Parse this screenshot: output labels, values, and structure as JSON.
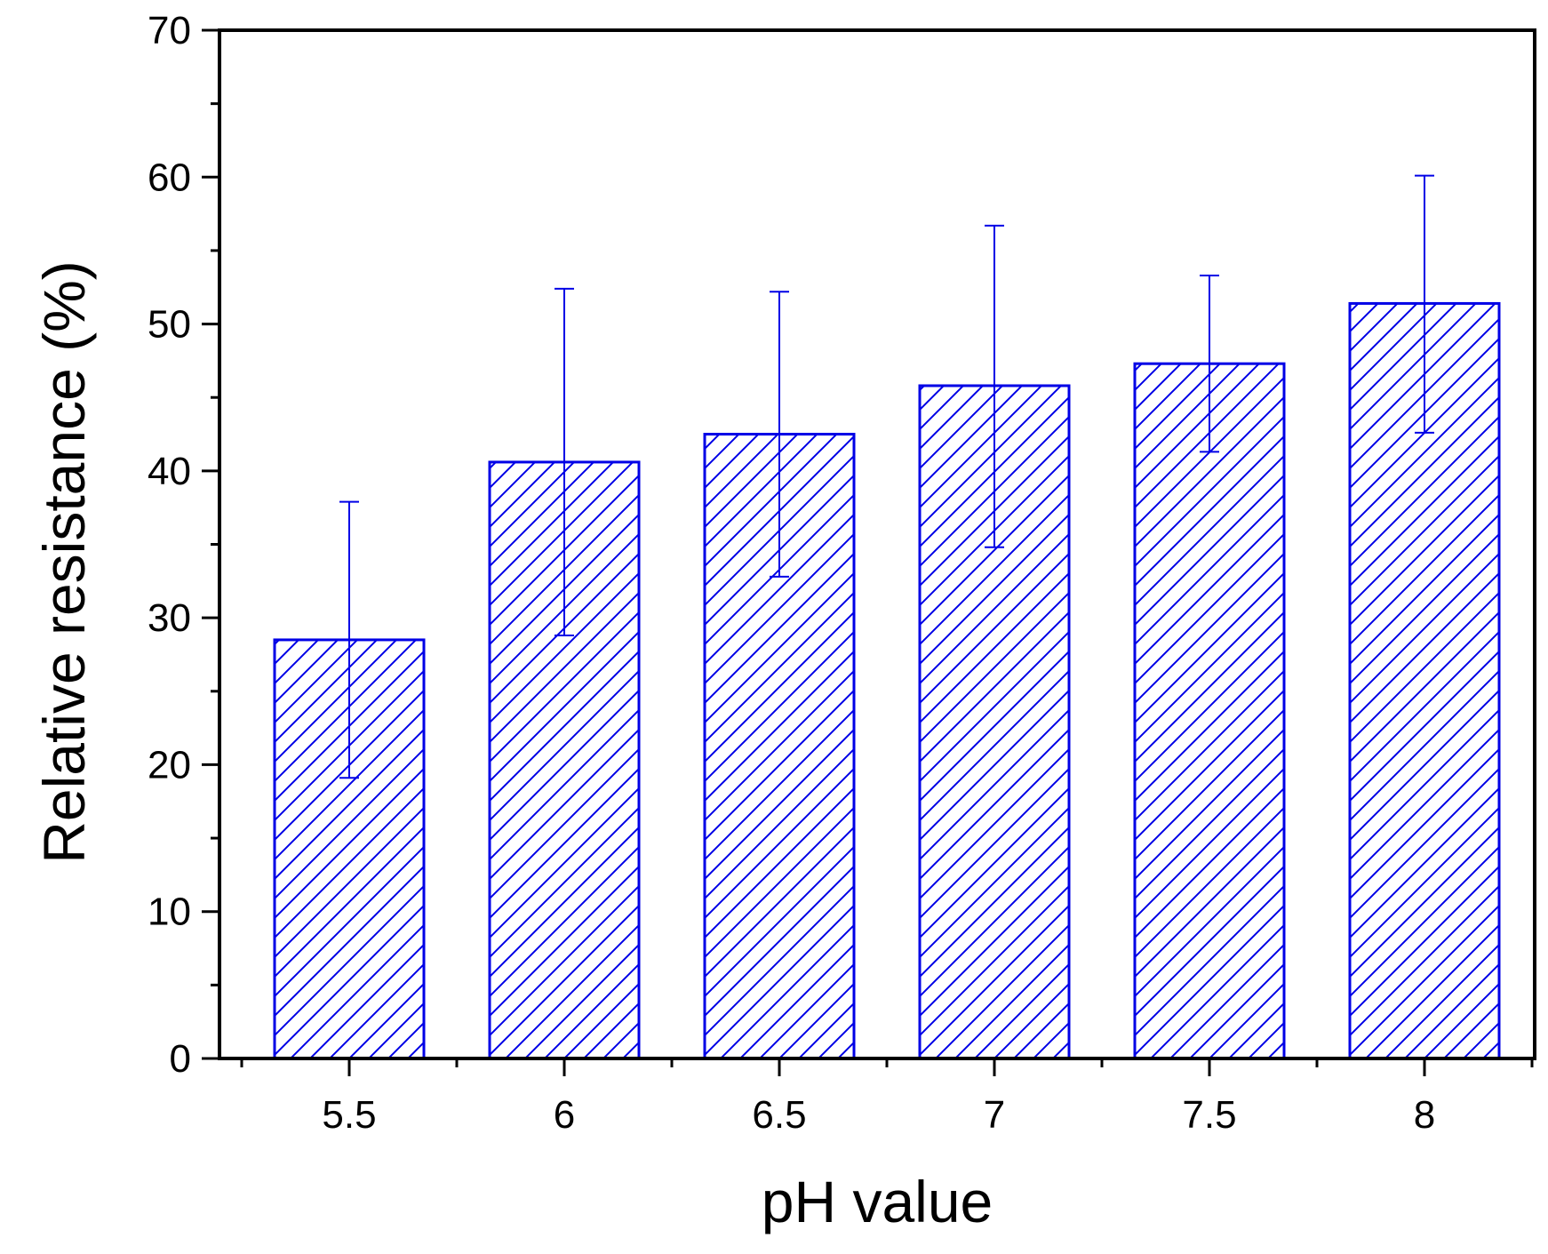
{
  "chart_data": {
    "type": "bar",
    "title": "",
    "xlabel": "pH value",
    "ylabel": "Relative resistance (%)",
    "categories": [
      "5.5",
      "6",
      "6.5",
      "7",
      "7.5",
      "8"
    ],
    "values": [
      28.5,
      40.6,
      42.5,
      45.8,
      47.3,
      51.4
    ],
    "error_upper": [
      37.9,
      52.4,
      52.2,
      56.7,
      53.3,
      60.1
    ],
    "error_lower": [
      19.1,
      28.8,
      32.8,
      34.8,
      41.3,
      42.6
    ],
    "ylim": [
      0,
      70
    ],
    "yticks": [
      0,
      10,
      20,
      30,
      40,
      50,
      60,
      70
    ],
    "ytick_labels": [
      "0",
      "10",
      "20",
      "30",
      "40",
      "50",
      "60",
      "70"
    ],
    "grid": false,
    "legend": "none",
    "bar_fill": "hatched",
    "colors": {
      "bar": "#0000e6",
      "axis": "#000000"
    }
  }
}
